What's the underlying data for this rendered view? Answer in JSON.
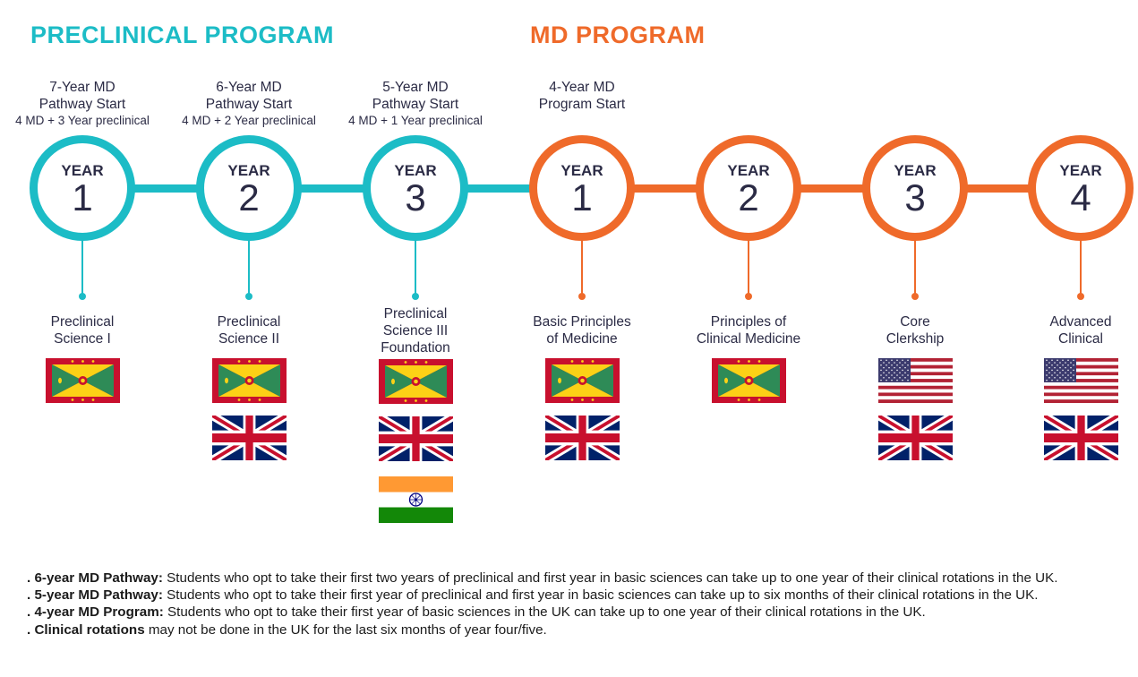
{
  "headers": {
    "preclinical": "PRECLINICAL PROGRAM",
    "md": "MD PROGRAM"
  },
  "year_label": "YEAR",
  "columns": [
    {
      "start_title": [
        "7-Year MD",
        "Pathway Start"
      ],
      "start_sub": "4 MD + 3 Year preclinical",
      "year": "1",
      "course": [
        "Preclinical",
        "Science I"
      ]
    },
    {
      "start_title": [
        "6-Year MD",
        "Pathway Start"
      ],
      "start_sub": "4 MD + 2 Year preclinical",
      "year": "2",
      "course": [
        "Preclinical",
        "Science II"
      ]
    },
    {
      "start_title": [
        "5-Year MD",
        "Pathway Start"
      ],
      "start_sub": "4 MD + 1 Year preclinical",
      "year": "3",
      "course": [
        "Preclinical",
        "Science III",
        "Foundation"
      ]
    },
    {
      "start_title": [
        "4-Year MD",
        "Program Start"
      ],
      "start_sub": "",
      "year": "1",
      "course": [
        "Basic Principles",
        "of Medicine"
      ]
    },
    {
      "start_title": [],
      "start_sub": "",
      "year": "2",
      "course": [
        "Principles of",
        "Clinical Medicine"
      ]
    },
    {
      "start_title": [],
      "start_sub": "",
      "year": "3",
      "course": [
        "Core",
        "Clerkship"
      ]
    },
    {
      "start_title": [],
      "start_sub": "",
      "year": "4",
      "course": [
        "Advanced",
        "Clinical"
      ]
    }
  ],
  "flags": [
    [
      "grenada-flag"
    ],
    [
      "grenada-flag",
      "uk-flag"
    ],
    [
      "grenada-flag",
      "uk-flag",
      "india-flag"
    ],
    [
      "grenada-flag",
      "uk-flag"
    ],
    [
      "grenada-flag"
    ],
    [
      "usa-flag",
      "uk-flag"
    ],
    [
      "usa-flag",
      "uk-flag"
    ]
  ],
  "colors": {
    "preclinical": "#1cbcc6",
    "md": "#ef6a2a",
    "text": "#2b2b45"
  },
  "notes": [
    {
      "bold": ". 6-year MD Pathway:",
      "text": " Students who opt to take their first two years of preclinical and first year in basic sciences can take up to one year of their clinical rotations in the UK."
    },
    {
      "bold": ". 5-year MD Pathway:",
      "text": " Students who opt to take their first year of preclinical and first year in basic sciences can take up to six months of their clinical rotations in the UK."
    },
    {
      "bold": ". 4-year MD Program:",
      "text": " Students who opt to take their first year of basic sciences in the UK can take up to one year of their clinical rotations in the UK."
    },
    {
      "bold": ". Clinical rotations",
      "text": " may not be done in the UK for the last six months of year four/five."
    }
  ]
}
